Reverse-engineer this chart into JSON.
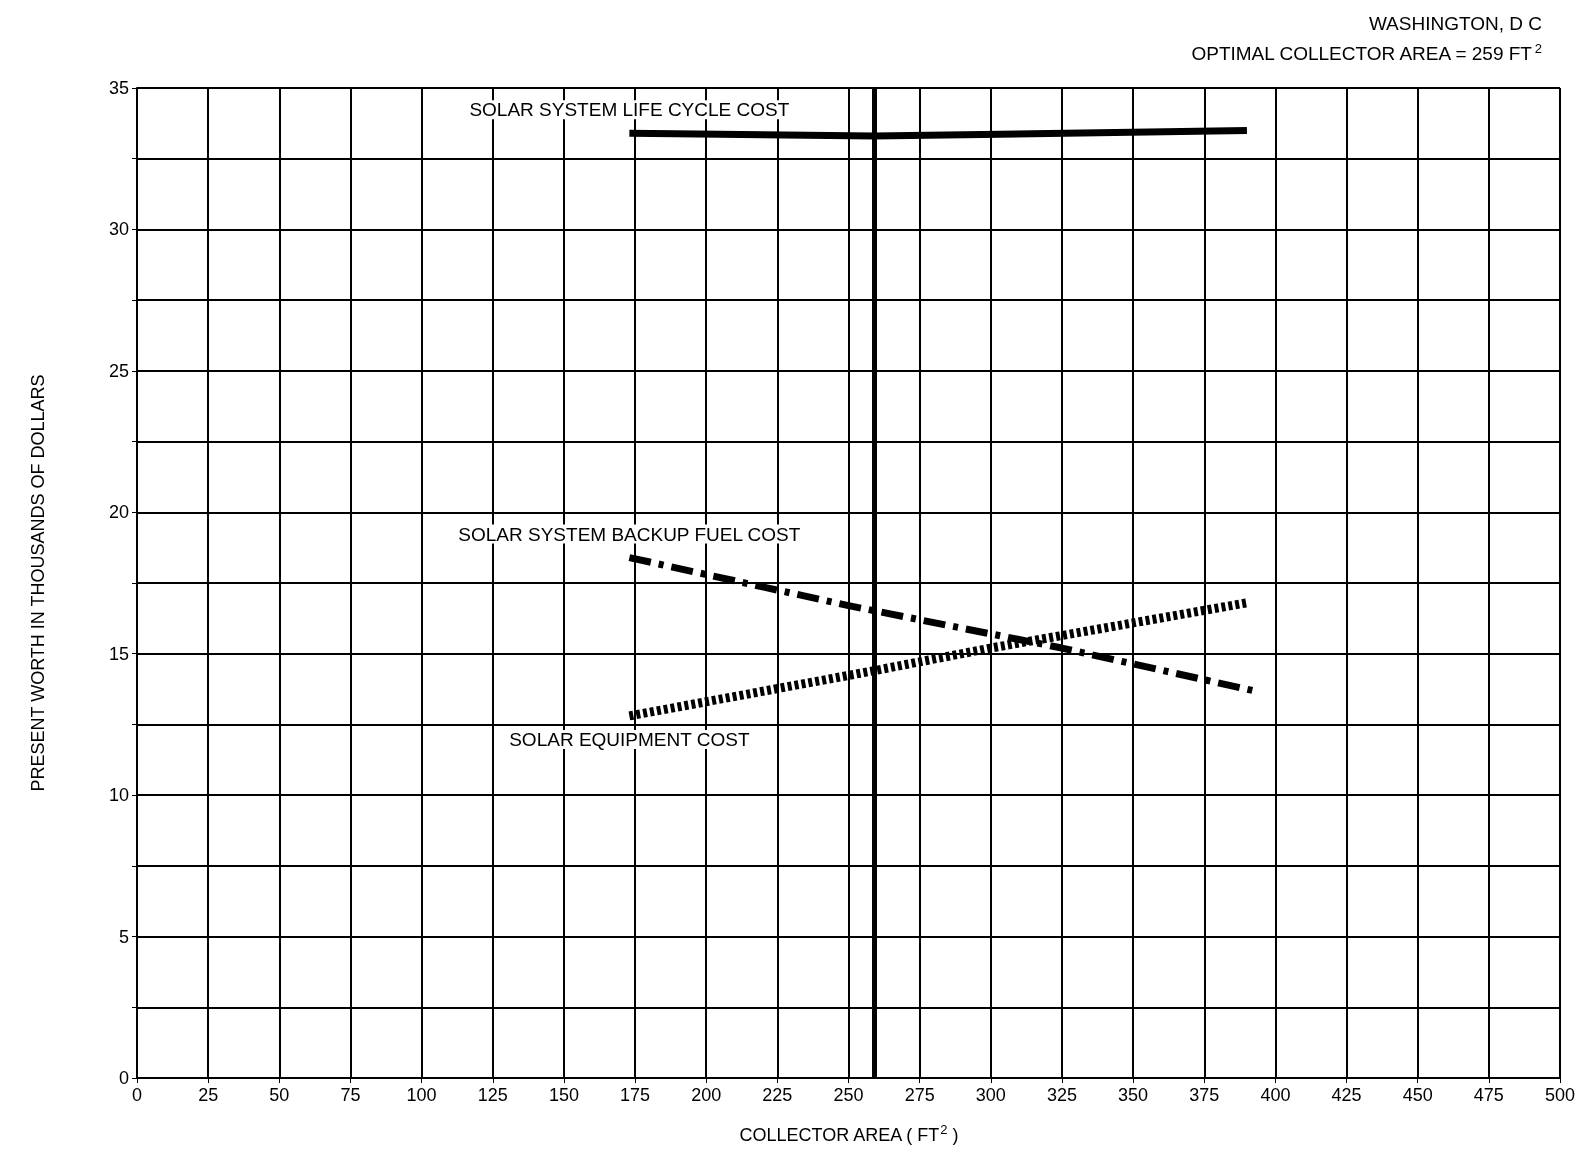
{
  "chart_data": {
    "type": "line",
    "xlabel": "COLLECTOR AREA ( FT$^{2}$ )",
    "ylabel": "PRESENT WORTH IN THOUSANDS OF DOLLARS",
    "annotations": [
      "WASHINGTON, D C",
      "OPTIMAL COLLECTOR AREA = 259 FT$^{2}$"
    ],
    "xlim": [
      0,
      500
    ],
    "xticks": [
      0,
      25,
      50,
      75,
      100,
      125,
      150,
      175,
      200,
      225,
      250,
      275,
      300,
      325,
      350,
      375,
      400,
      425,
      450,
      475,
      500
    ],
    "ylim": [
      0,
      35
    ],
    "yticks": [
      0,
      {
        "value": 2.5,
        "label": null
      },
      5,
      {
        "value": 7.5,
        "label": null
      },
      10,
      {
        "value": 12.5,
        "label": null
      },
      15,
      {
        "value": 17.5,
        "label": null
      },
      20,
      {
        "value": 22.5,
        "label": null
      },
      25,
      {
        "value": 27.5,
        "label": null
      },
      30,
      {
        "value": 32.5,
        "label": null
      },
      35
    ],
    "grid": true,
    "legend": false,
    "marker": "none",
    "series": [
      {
        "name": "SOLAR SYSTEM LIFE CYCLE COST",
        "color": "#000000",
        "line_style": "solid",
        "x": [
          173,
          259,
          390
        ],
        "values": [
          33.4,
          33.3,
          33.5
        ]
      },
      {
        "name": "SOLAR SYSTEM BACKUP FUEL COST",
        "color": "#000000",
        "line_style": "dashed",
        "x": [
          173,
          200,
          250,
          300,
          325,
          392
        ],
        "values": [
          18.4,
          17.8,
          16.7,
          15.7,
          15.2,
          13.7
        ]
      },
      {
        "name": "SOLAR EQUIPMENT COST",
        "color": "#000000",
        "line_style": "dotted",
        "x": [
          173,
          259,
          300,
          390
        ],
        "values": [
          12.8,
          14.4,
          15.2,
          16.8
        ]
      }
    ],
    "ref_lines": [
      {
        "axis": "x",
        "value": 259,
        "color": "#000000",
        "line_style": "solid"
      }
    ]
  }
}
